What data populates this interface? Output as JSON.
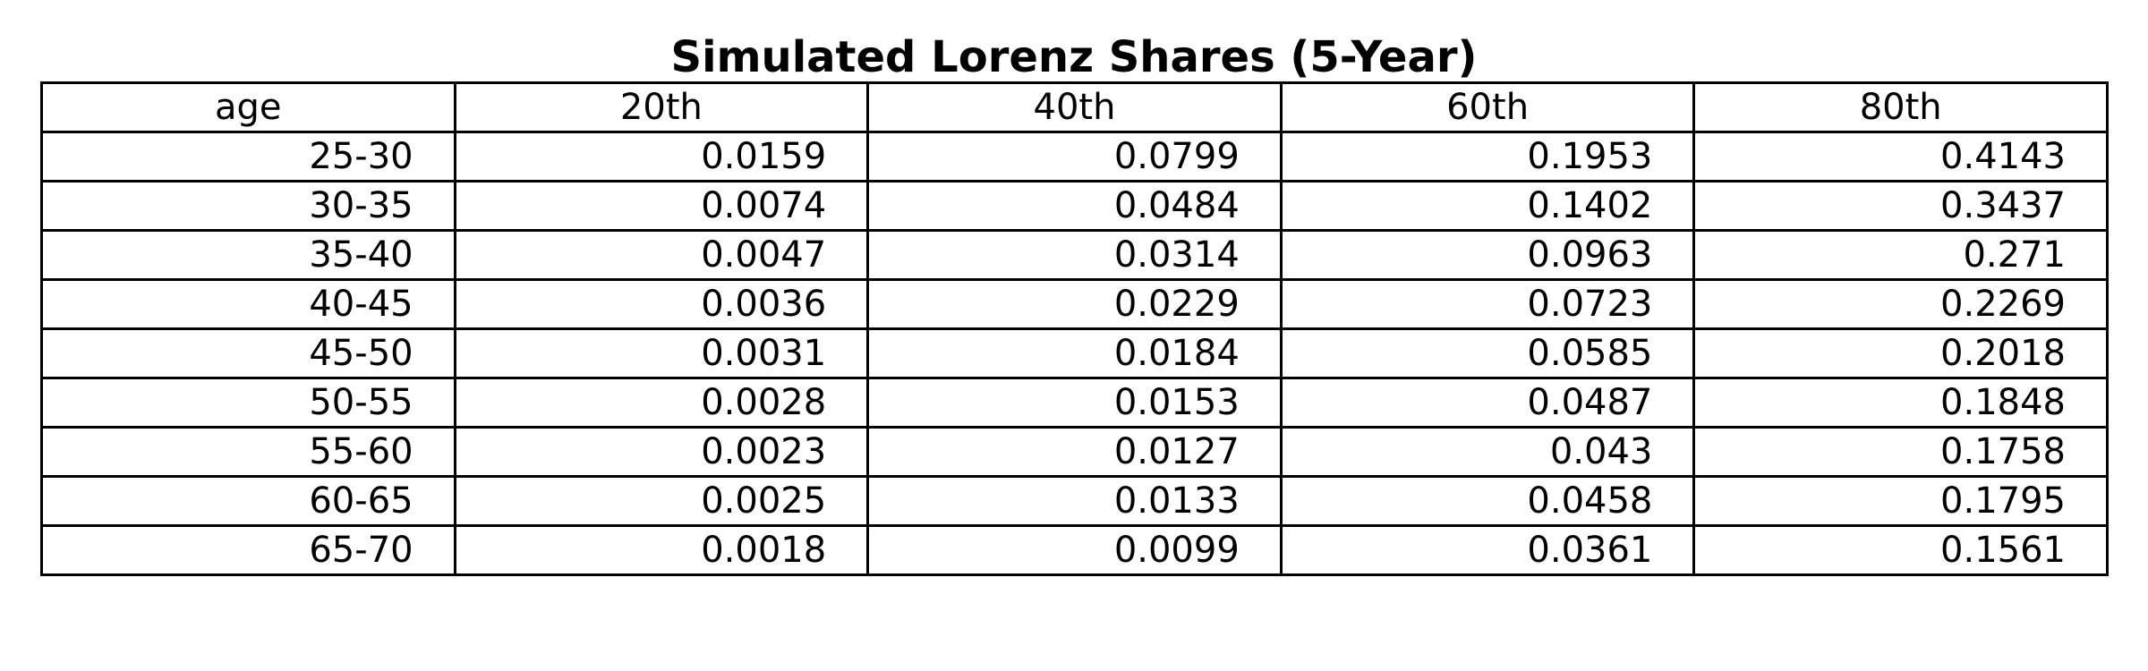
{
  "chart_data": {
    "type": "table",
    "title": "Simulated Lorenz Shares (5-Year)",
    "columns": [
      "age",
      "20th",
      "40th",
      "60th",
      "80th"
    ],
    "rows": [
      [
        "25-30",
        "0.0159",
        "0.0799",
        "0.1953",
        "0.4143"
      ],
      [
        "30-35",
        "0.0074",
        "0.0484",
        "0.1402",
        "0.3437"
      ],
      [
        "35-40",
        "0.0047",
        "0.0314",
        "0.0963",
        "0.271"
      ],
      [
        "40-45",
        "0.0036",
        "0.0229",
        "0.0723",
        "0.2269"
      ],
      [
        "45-50",
        "0.0031",
        "0.0184",
        "0.0585",
        "0.2018"
      ],
      [
        "50-55",
        "0.0028",
        "0.0153",
        "0.0487",
        "0.1848"
      ],
      [
        "55-60",
        "0.0023",
        "0.0127",
        "0.043",
        "0.1758"
      ],
      [
        "60-65",
        "0.0025",
        "0.0133",
        "0.0458",
        "0.1795"
      ],
      [
        "65-70",
        "0.0018",
        "0.0099",
        "0.0361",
        "0.1561"
      ]
    ]
  }
}
